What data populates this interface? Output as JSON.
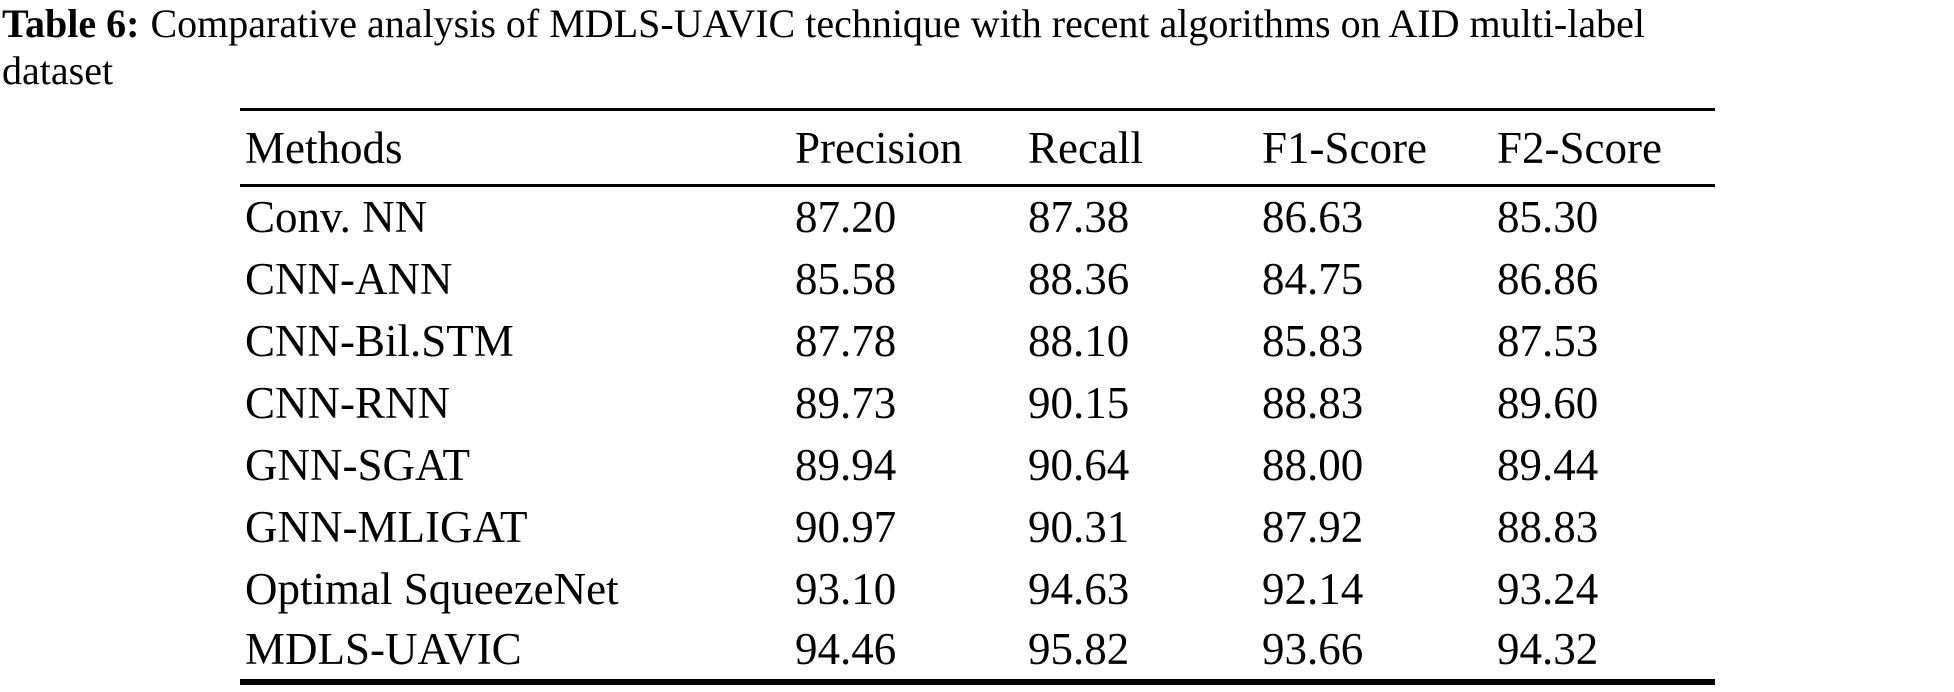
{
  "page": {
    "background": "#ffffff",
    "text_color": "#000000"
  },
  "caption": {
    "label": "Table 6:",
    "line1": "Comparative analysis of MDLS-UAVIC technique with recent algorithms on AID multi-label",
    "line2": "dataset"
  },
  "chart_data": {
    "type": "table",
    "title": "Table 6: Comparative analysis of MDLS-UAVIC technique with recent algorithms on AID multi-label dataset",
    "columns": [
      "Methods",
      "Precision",
      "Recall",
      "F1-Score",
      "F2-Score"
    ],
    "rows": [
      [
        "Conv. NN",
        "87.20",
        "87.38",
        "86.63",
        "85.30"
      ],
      [
        "CNN-ANN",
        "85.58",
        "88.36",
        "84.75",
        "86.86"
      ],
      [
        "CNN-Bil.STM",
        "87.78",
        "88.10",
        "85.83",
        "87.53"
      ],
      [
        "CNN-RNN",
        "89.73",
        "90.15",
        "88.83",
        "89.60"
      ],
      [
        "GNN-SGAT",
        "89.94",
        "90.64",
        "88.00",
        "89.44"
      ],
      [
        "GNN-MLIGAT",
        "90.97",
        "90.31",
        "87.92",
        "88.83"
      ],
      [
        "Optimal SqueezeNet",
        "93.10",
        "94.63",
        "92.14",
        "93.24"
      ],
      [
        "MDLS-UAVIC",
        "94.46",
        "95.82",
        "93.66",
        "94.32"
      ]
    ]
  }
}
